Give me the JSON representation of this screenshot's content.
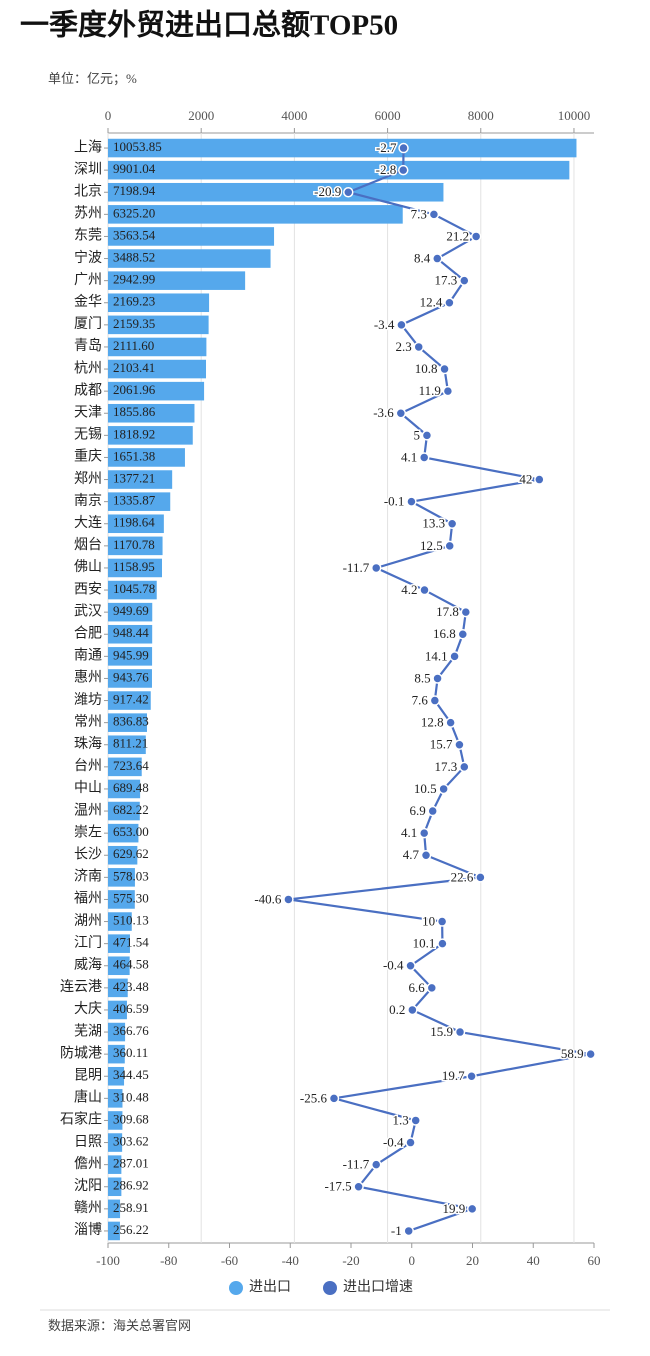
{
  "chart_data": {
    "type": "combo",
    "title": "一季度外贸进出口总额TOP50",
    "subtitle": "单位：亿元；%",
    "source": "数据来源：海关总署官网",
    "categories": [
      "上海",
      "深圳",
      "北京",
      "苏州",
      "东莞",
      "宁波",
      "广州",
      "金华",
      "厦门",
      "青岛",
      "杭州",
      "成都",
      "天津",
      "无锡",
      "重庆",
      "郑州",
      "南京",
      "大连",
      "烟台",
      "佛山",
      "西安",
      "武汉",
      "合肥",
      "南通",
      "惠州",
      "潍坊",
      "常州",
      "珠海",
      "台州",
      "中山",
      "温州",
      "崇左",
      "长沙",
      "济南",
      "福州",
      "湖州",
      "江门",
      "威海",
      "连云港",
      "大庆",
      "芜湖",
      "防城港",
      "昆明",
      "唐山",
      "石家庄",
      "日照",
      "儋州",
      "沈阳",
      "赣州",
      "淄博"
    ],
    "xlim": [
      0,
      10430
    ],
    "xticks": [
      0,
      2000,
      4000,
      6000,
      8000,
      10000
    ],
    "x2lim": [
      -100,
      60
    ],
    "x2ticks": [
      -100,
      -80,
      -60,
      -40,
      -20,
      0,
      20,
      40,
      60
    ],
    "grid": true,
    "legend": "bottom",
    "series": [
      {
        "name": "进出口",
        "type": "bar",
        "axis": "x",
        "color": "#55a8ec",
        "values": [
          10053.85,
          9901.04,
          7198.94,
          6325.2,
          3563.54,
          3488.52,
          2942.99,
          2169.23,
          2159.35,
          2111.6,
          2103.41,
          2061.96,
          1855.86,
          1818.92,
          1651.38,
          1377.21,
          1335.87,
          1198.64,
          1170.78,
          1158.95,
          1045.78,
          949.69,
          948.44,
          945.99,
          943.76,
          917.42,
          836.83,
          811.21,
          723.64,
          689.48,
          682.22,
          653,
          629.62,
          578.03,
          575.3,
          510.13,
          471.54,
          464.58,
          423.48,
          406.59,
          366.76,
          360.11,
          344.45,
          310.48,
          309.68,
          303.62,
          287.01,
          286.92,
          258.91,
          256.22
        ],
        "value_labels": [
          "10053.85",
          "9901.04",
          "7198.94",
          "6325.20",
          "3563.54",
          "3488.52",
          "2942.99",
          "2169.23",
          "2159.35",
          "2111.60",
          "2103.41",
          "2061.96",
          "1855.86",
          "1818.92",
          "1651.38",
          "1377.21",
          "1335.87",
          "1198.64",
          "1170.78",
          "1158.95",
          "1045.78",
          "949.69",
          "948.44",
          "945.99",
          "943.76",
          "917.42",
          "836.83",
          "811.21",
          "723.64",
          "689.48",
          "682.22",
          "653.00",
          "629.62",
          "578.03",
          "575.30",
          "510.13",
          "471.54",
          "464.58",
          "423.48",
          "406.59",
          "366.76",
          "360.11",
          "344.45",
          "310.48",
          "309.68",
          "303.62",
          "287.01",
          "286.92",
          "258.91",
          "256.22"
        ]
      },
      {
        "name": "进出口增速",
        "type": "line",
        "axis": "x2",
        "color": "#4a6fc2",
        "values": [
          -2.7,
          -2.8,
          -20.9,
          7.3,
          21.2,
          8.4,
          17.3,
          12.4,
          -3.4,
          2.3,
          10.8,
          11.9,
          -3.6,
          5,
          4.1,
          42,
          -0.1,
          13.3,
          12.5,
          -11.7,
          4.2,
          17.8,
          16.8,
          14.1,
          8.5,
          7.6,
          12.8,
          15.7,
          17.3,
          10.5,
          6.9,
          4.1,
          4.7,
          22.6,
          -40.6,
          10,
          10.1,
          -0.4,
          6.6,
          0.2,
          15.9,
          58.9,
          19.7,
          -25.6,
          1.3,
          -0.4,
          -11.7,
          -17.5,
          19.9,
          -1
        ]
      }
    ]
  }
}
